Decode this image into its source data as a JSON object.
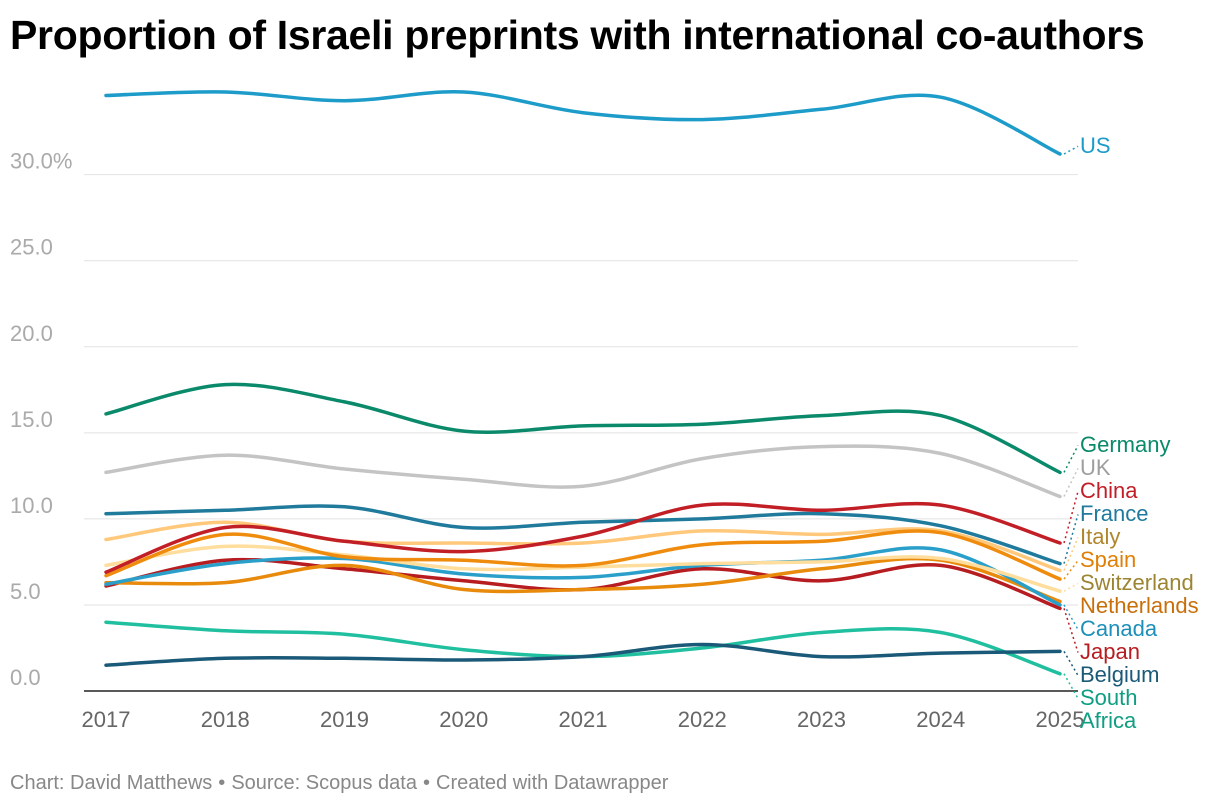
{
  "title": "Proportion of Israeli preprints with international co-authors",
  "footer": {
    "credit": "Chart: David Matthews",
    "source": "Source: Scopus data",
    "tool": "Created with Datawrapper",
    "separator": "•"
  },
  "chart_data": {
    "type": "line",
    "title": "Proportion of Israeli preprints with international co-authors",
    "x": [
      "2017",
      "2018",
      "2019",
      "2020",
      "2021",
      "2022",
      "2023",
      "2024",
      "2025"
    ],
    "xlabel": "",
    "ylabel": "",
    "ylim": [
      0,
      35.5
    ],
    "yticks": [
      0,
      5,
      10,
      15,
      20,
      25,
      30
    ],
    "ytick_labels": [
      "0.0",
      "5.0",
      "10.0",
      "15.0",
      "20.0",
      "25.0",
      "30.0%"
    ],
    "grid": "horizontal",
    "legend": "direct labels at line ends (right)",
    "series": [
      {
        "name": "US",
        "color": "#1d9bc9",
        "values": [
          34.6,
          34.8,
          34.3,
          34.8,
          33.6,
          33.2,
          33.8,
          34.5,
          31.2
        ]
      },
      {
        "name": "Germany",
        "color": "#0a8a6a",
        "values": [
          16.1,
          17.8,
          16.8,
          15.1,
          15.4,
          15.5,
          16.0,
          16.0,
          12.7
        ]
      },
      {
        "name": "UK",
        "color": "#c4c4c4",
        "values": [
          12.7,
          13.7,
          12.9,
          12.3,
          11.9,
          13.5,
          14.2,
          13.8,
          11.3
        ]
      },
      {
        "name": "China",
        "color": "#c21e26",
        "values": [
          6.9,
          9.5,
          8.7,
          8.1,
          9.0,
          10.8,
          10.5,
          10.8,
          8.6
        ]
      },
      {
        "name": "France",
        "color": "#1f7a9c",
        "values": [
          10.3,
          10.5,
          10.7,
          9.5,
          9.8,
          10.0,
          10.3,
          9.6,
          7.4
        ]
      },
      {
        "name": "Spain",
        "color": "#ef8c0e",
        "values": [
          6.7,
          9.1,
          7.8,
          7.6,
          7.3,
          8.5,
          8.7,
          9.2,
          6.5
        ]
      },
      {
        "name": "Italy",
        "color": "#ffc87a",
        "values": [
          8.8,
          9.8,
          8.7,
          8.6,
          8.6,
          9.3,
          9.1,
          9.3,
          7.0
        ]
      },
      {
        "name": "Switzerland",
        "color": "#ffdd9c",
        "values": [
          7.3,
          8.4,
          7.9,
          7.1,
          7.2,
          7.4,
          7.5,
          7.7,
          5.8
        ]
      },
      {
        "name": "Canada",
        "color": "#2a9fc9",
        "values": [
          6.2,
          7.4,
          7.7,
          6.8,
          6.6,
          7.3,
          7.6,
          8.2,
          5.0
        ]
      },
      {
        "name": "Netherlands",
        "color": "#e88a0c",
        "values": [
          6.3,
          6.3,
          7.3,
          5.9,
          5.9,
          6.2,
          7.1,
          7.6,
          5.2
        ]
      },
      {
        "name": "Belgium",
        "color": "#1a5a78",
        "values": [
          1.5,
          1.9,
          1.9,
          1.8,
          2.0,
          2.7,
          2.0,
          2.2,
          2.3
        ]
      },
      {
        "name": "Japan",
        "color": "#b71c20",
        "values": [
          6.1,
          7.6,
          7.1,
          6.4,
          5.9,
          7.1,
          6.4,
          7.3,
          4.8
        ]
      },
      {
        "name": "South Africa",
        "color": "#1fbfa0",
        "values": [
          4.0,
          3.5,
          3.3,
          2.4,
          2.0,
          2.5,
          3.4,
          3.4,
          1.0
        ]
      }
    ]
  },
  "labels": [
    {
      "lines": [
        "US"
      ],
      "color": "#1d9bc9"
    },
    {
      "lines": [
        "Germany"
      ],
      "color": "#0a8a6a"
    },
    {
      "lines": [
        "UK"
      ],
      "color": "#9e9e9e"
    },
    {
      "lines": [
        "China"
      ],
      "color": "#c21e26"
    },
    {
      "lines": [
        "France"
      ],
      "color": "#1f7a9c"
    },
    {
      "lines": [
        "Spain"
      ],
      "color": "#e07f05"
    },
    {
      "lines": [
        "Italy"
      ],
      "color": "#b0862c"
    },
    {
      "lines": [
        "Switzerland"
      ],
      "color": "#9c8432"
    },
    {
      "lines": [
        "Canada"
      ],
      "color": "#1d8fb8"
    },
    {
      "lines": [
        "Netherlands"
      ],
      "color": "#c96f0a"
    },
    {
      "lines": [
        "Belgium"
      ],
      "color": "#1a5a78"
    },
    {
      "lines": [
        "Japan"
      ],
      "color": "#b71c20"
    },
    {
      "lines": [
        "South",
        "Africa"
      ],
      "color": "#0f9e82"
    }
  ]
}
